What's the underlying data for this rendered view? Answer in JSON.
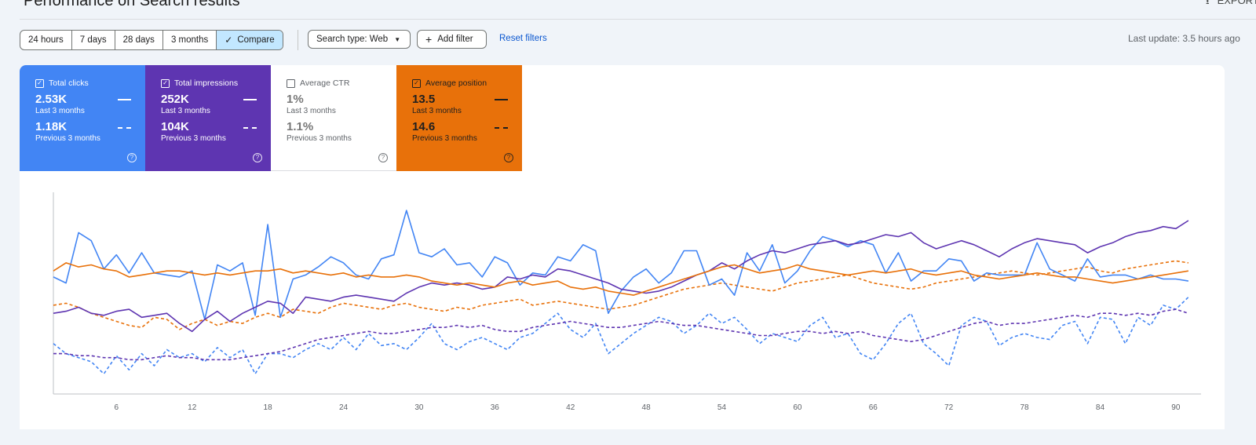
{
  "header": {
    "title": "Performance on Search results",
    "export_label": "EXPORT",
    "export_icon": "download-icon"
  },
  "toolbar": {
    "ranges": [
      {
        "label": "24 hours",
        "selected": false
      },
      {
        "label": "7 days",
        "selected": false
      },
      {
        "label": "28 days",
        "selected": false
      },
      {
        "label": "3 months",
        "selected": false
      },
      {
        "label": "Compare",
        "selected": true
      }
    ],
    "search_type": "Search type: Web",
    "add_filter": "Add filter",
    "reset_filters": "Reset filters",
    "last_update": "Last update: 3.5 hours ago"
  },
  "metrics": {
    "clicks": {
      "label": "Total clicks",
      "checked": true,
      "value": "2.53K",
      "period": "Last 3 months",
      "prev_value": "1.18K",
      "prev_period": "Previous 3 months",
      "color": "#4285f4"
    },
    "impressions": {
      "label": "Total impressions",
      "checked": true,
      "value": "252K",
      "period": "Last 3 months",
      "prev_value": "104K",
      "prev_period": "Previous 3 months",
      "color": "#5e35b1"
    },
    "ctr": {
      "label": "Average CTR",
      "checked": false,
      "value": "1%",
      "period": "Last 3 months",
      "prev_value": "1.1%",
      "prev_period": "Previous 3 months",
      "color": "#00897b"
    },
    "position": {
      "label": "Average position",
      "checked": true,
      "value": "13.5",
      "period": "Last 3 months",
      "prev_value": "14.6",
      "prev_period": "Previous 3 months",
      "color": "#e8710a"
    }
  },
  "chart_data": {
    "type": "line",
    "x_ticks": [
      "6",
      "12",
      "18",
      "24",
      "30",
      "36",
      "42",
      "48",
      "54",
      "60",
      "66",
      "72",
      "78",
      "84",
      "90"
    ],
    "xlim": [
      1,
      92
    ],
    "ylim": [
      0,
      100
    ],
    "grid": false,
    "series": [
      {
        "name": "Total clicks",
        "color": "#4285f4",
        "style": "solid",
        "values": [
          58,
          55,
          80,
          76,
          62,
          69,
          60,
          70,
          60,
          59,
          58,
          61,
          37,
          64,
          61,
          65,
          39,
          84,
          38,
          57,
          59,
          63,
          68,
          65,
          59,
          57,
          67,
          69,
          91,
          70,
          68,
          72,
          64,
          65,
          58,
          68,
          65,
          54,
          60,
          59,
          68,
          66,
          74,
          71,
          40,
          51,
          58,
          62,
          55,
          60,
          71,
          71,
          54,
          57,
          49,
          70,
          61,
          74,
          55,
          61,
          71,
          78,
          76,
          73,
          76,
          74,
          60,
          70,
          56,
          61,
          61,
          67,
          66,
          56,
          60,
          59,
          59,
          59,
          75,
          62,
          59,
          56,
          67,
          58,
          59,
          59,
          57,
          59,
          57,
          57,
          56
        ]
      },
      {
        "name": "Total clicks (previous)",
        "color": "#4285f4",
        "style": "dashed",
        "values": [
          25,
          20,
          18,
          16,
          10,
          19,
          12,
          20,
          14,
          22,
          18,
          20,
          16,
          23,
          18,
          22,
          10,
          20,
          20,
          18,
          22,
          25,
          22,
          28,
          22,
          30,
          24,
          25,
          22,
          28,
          35,
          25,
          22,
          26,
          28,
          25,
          22,
          28,
          30,
          35,
          40,
          32,
          28,
          35,
          20,
          25,
          30,
          34,
          38,
          36,
          30,
          34,
          40,
          35,
          38,
          32,
          25,
          30,
          28,
          26,
          34,
          38,
          28,
          30,
          20,
          17,
          25,
          35,
          40,
          25,
          20,
          14,
          34,
          38,
          36,
          24,
          28,
          30,
          28,
          27,
          34,
          36,
          25,
          38,
          37,
          25,
          38,
          34,
          44,
          42,
          48
        ]
      },
      {
        "name": "Total impressions",
        "color": "#5e35b1",
        "style": "solid",
        "values": [
          40,
          41,
          43,
          40,
          39,
          41,
          42,
          38,
          39,
          40,
          35,
          31,
          37,
          41,
          36,
          40,
          43,
          46,
          45,
          40,
          48,
          47,
          46,
          48,
          49,
          48,
          47,
          46,
          50,
          53,
          55,
          54,
          55,
          54,
          52,
          53,
          58,
          57,
          59,
          58,
          62,
          61,
          59,
          57,
          55,
          52,
          51,
          50,
          51,
          53,
          56,
          59,
          61,
          65,
          62,
          66,
          69,
          71,
          70,
          72,
          74,
          75,
          76,
          74,
          75,
          77,
          79,
          78,
          80,
          75,
          72,
          74,
          76,
          74,
          71,
          68,
          72,
          75,
          77,
          76,
          75,
          74,
          70,
          73,
          75,
          78,
          80,
          81,
          83,
          82,
          86
        ]
      },
      {
        "name": "Total impressions (previous)",
        "color": "#5e35b1",
        "style": "dashed",
        "values": [
          20,
          20,
          19,
          19,
          18,
          18,
          17,
          17,
          18,
          19,
          18,
          18,
          17,
          17,
          17,
          18,
          19,
          20,
          21,
          23,
          25,
          27,
          28,
          29,
          30,
          31,
          30,
          30,
          31,
          32,
          33,
          33,
          34,
          33,
          34,
          32,
          31,
          31,
          33,
          34,
          35,
          36,
          35,
          34,
          33,
          33,
          34,
          35,
          36,
          35,
          34,
          34,
          33,
          32,
          31,
          30,
          29,
          29,
          30,
          31,
          31,
          30,
          31,
          30,
          31,
          29,
          28,
          27,
          26,
          27,
          29,
          31,
          33,
          35,
          36,
          34,
          35,
          35,
          36,
          37,
          38,
          39,
          38,
          40,
          40,
          39,
          40,
          39,
          41,
          42,
          40
        ]
      },
      {
        "name": "Average position",
        "color": "#e8710a",
        "style": "solid",
        "values": [
          61,
          65,
          63,
          64,
          62,
          61,
          58,
          59,
          60,
          61,
          61,
          60,
          59,
          60,
          59,
          60,
          61,
          61,
          62,
          60,
          61,
          60,
          59,
          60,
          58,
          59,
          58,
          58,
          59,
          58,
          56,
          55,
          54,
          55,
          54,
          53,
          55,
          56,
          54,
          55,
          56,
          53,
          52,
          53,
          51,
          50,
          49,
          51,
          53,
          55,
          57,
          59,
          61,
          63,
          64,
          62,
          60,
          61,
          62,
          64,
          62,
          61,
          60,
          59,
          60,
          61,
          60,
          61,
          62,
          60,
          59,
          60,
          61,
          59,
          58,
          57,
          58,
          59,
          60,
          59,
          58,
          58,
          57,
          56,
          55,
          56,
          57,
          58,
          59,
          60,
          61
        ]
      },
      {
        "name": "Average position (previous)",
        "color": "#e8710a",
        "style": "dashed",
        "values": [
          44,
          45,
          43,
          40,
          38,
          36,
          34,
          33,
          38,
          37,
          32,
          35,
          37,
          34,
          36,
          35,
          38,
          40,
          38,
          42,
          41,
          40,
          43,
          45,
          44,
          43,
          42,
          44,
          45,
          43,
          42,
          41,
          43,
          42,
          44,
          45,
          46,
          47,
          44,
          45,
          46,
          45,
          44,
          43,
          42,
          43,
          44,
          46,
          48,
          50,
          52,
          53,
          54,
          55,
          54,
          53,
          52,
          51,
          53,
          55,
          56,
          57,
          58,
          59,
          57,
          55,
          54,
          53,
          52,
          53,
          55,
          56,
          57,
          58,
          59,
          60,
          61,
          60,
          59,
          60,
          61,
          62,
          63,
          61,
          60,
          62,
          63,
          64,
          65,
          66,
          65
        ]
      }
    ]
  }
}
